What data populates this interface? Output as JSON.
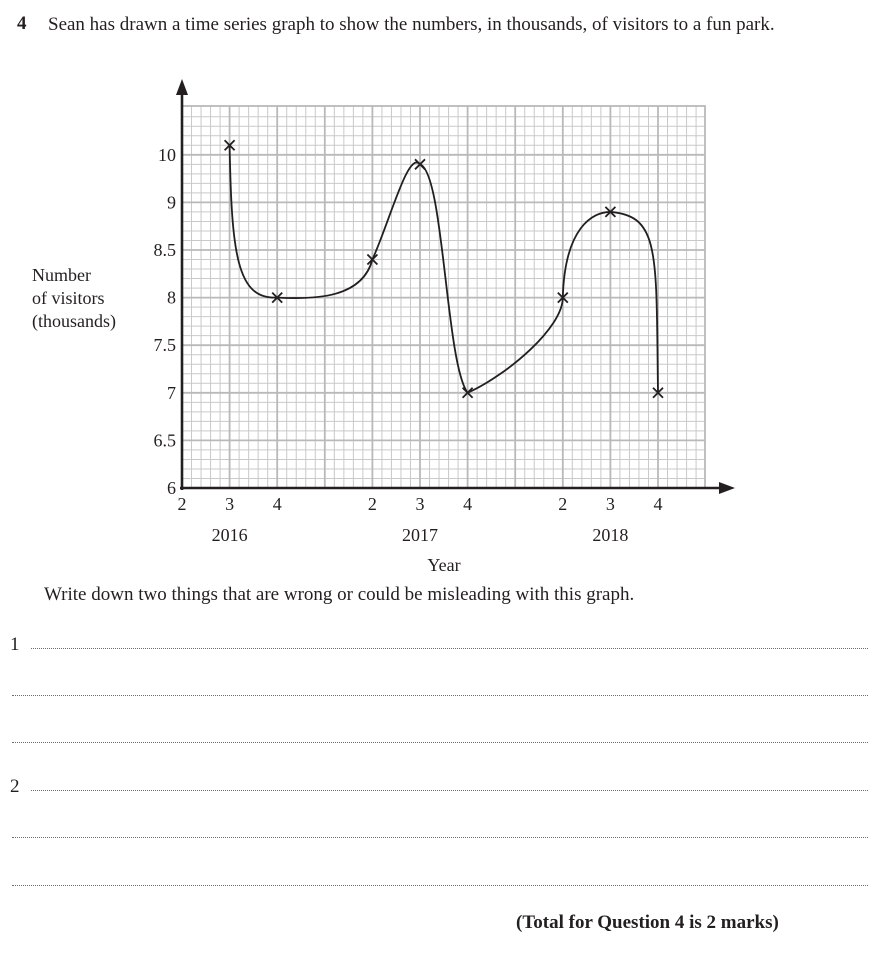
{
  "question": {
    "number": "4",
    "text": "Sean has drawn a time series graph to show the numbers, in thousands, of visitors to a fun park."
  },
  "chart_data": {
    "type": "line",
    "title": "",
    "xlabel": "Year",
    "ylabel": "Number of visitors (thousands)",
    "ylabel_lines": [
      "Number",
      "of visitors",
      "(thousands)"
    ],
    "y_tick_labels": [
      "6",
      "6.5",
      "7",
      "7.5",
      "8",
      "8.5",
      "9",
      "10"
    ],
    "x_quarter_tick_labels": [
      "2",
      "3",
      "4",
      "2",
      "3",
      "4",
      "2",
      "3",
      "4"
    ],
    "x_year_labels": [
      "2016",
      "2017",
      "2018"
    ],
    "grid": true,
    "note": "Y-axis labels are unevenly spaced: 9 and 10 are one major division apart while other labels are 0.5 apart; smooth curve drawn through points.",
    "categories": [
      "2016 Q3",
      "2016 Q4",
      "2017 Q2",
      "2017 Q3",
      "2017 Q4",
      "2018 Q2",
      "2018 Q3",
      "2018 Q4"
    ],
    "series": [
      {
        "name": "Visitors (thousands)",
        "values": [
          10.2,
          8.0,
          8.4,
          9.8,
          7.0,
          8.0,
          8.9,
          7.0
        ]
      }
    ],
    "ylim": [
      6,
      10
    ]
  },
  "instruction": "Write down two things that are wrong or could be misleading with this graph.",
  "answers": [
    {
      "number": "1",
      "value": ""
    },
    {
      "number": "2",
      "value": ""
    }
  ],
  "total": "(Total for Question 4 is 2 marks)"
}
